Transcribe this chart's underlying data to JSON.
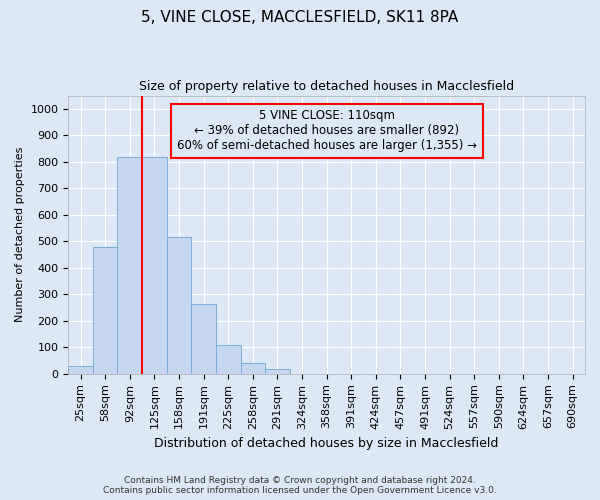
{
  "title": "5, VINE CLOSE, MACCLESFIELD, SK11 8PA",
  "subtitle": "Size of property relative to detached houses in Macclesfield",
  "xlabel": "Distribution of detached houses by size in Macclesfield",
  "ylabel": "Number of detached properties",
  "footer_line1": "Contains HM Land Registry data © Crown copyright and database right 2024.",
  "footer_line2": "Contains public sector information licensed under the Open Government Licence v3.0.",
  "bar_labels": [
    "25sqm",
    "58sqm",
    "92sqm",
    "125sqm",
    "158sqm",
    "191sqm",
    "225sqm",
    "258sqm",
    "291sqm",
    "324sqm",
    "358sqm",
    "391sqm",
    "424sqm",
    "457sqm",
    "491sqm",
    "524sqm",
    "557sqm",
    "590sqm",
    "624sqm",
    "657sqm",
    "690sqm"
  ],
  "bar_values": [
    30,
    480,
    820,
    820,
    515,
    265,
    110,
    40,
    20,
    0,
    0,
    0,
    0,
    0,
    0,
    0,
    0,
    0,
    0,
    0,
    0
  ],
  "bar_color": "#c5d8f0",
  "bar_edgecolor": "#7aadd4",
  "vline_x": 2.5,
  "vline_color": "red",
  "annotation_text": "5 VINE CLOSE: 110sqm\n← 39% of detached houses are smaller (892)\n60% of semi-detached houses are larger (1,355) →",
  "annotation_box_color": "red",
  "ylim": [
    0,
    1050
  ],
  "yticks": [
    0,
    100,
    200,
    300,
    400,
    500,
    600,
    700,
    800,
    900,
    1000
  ],
  "background_color": "#dce8f5",
  "grid_color": "#ffffff",
  "title_fontsize": 11,
  "subtitle_fontsize": 9,
  "xlabel_fontsize": 9,
  "ylabel_fontsize": 8,
  "tick_fontsize": 8,
  "ann_fontsize": 8.5,
  "footer_fontsize": 6.5
}
